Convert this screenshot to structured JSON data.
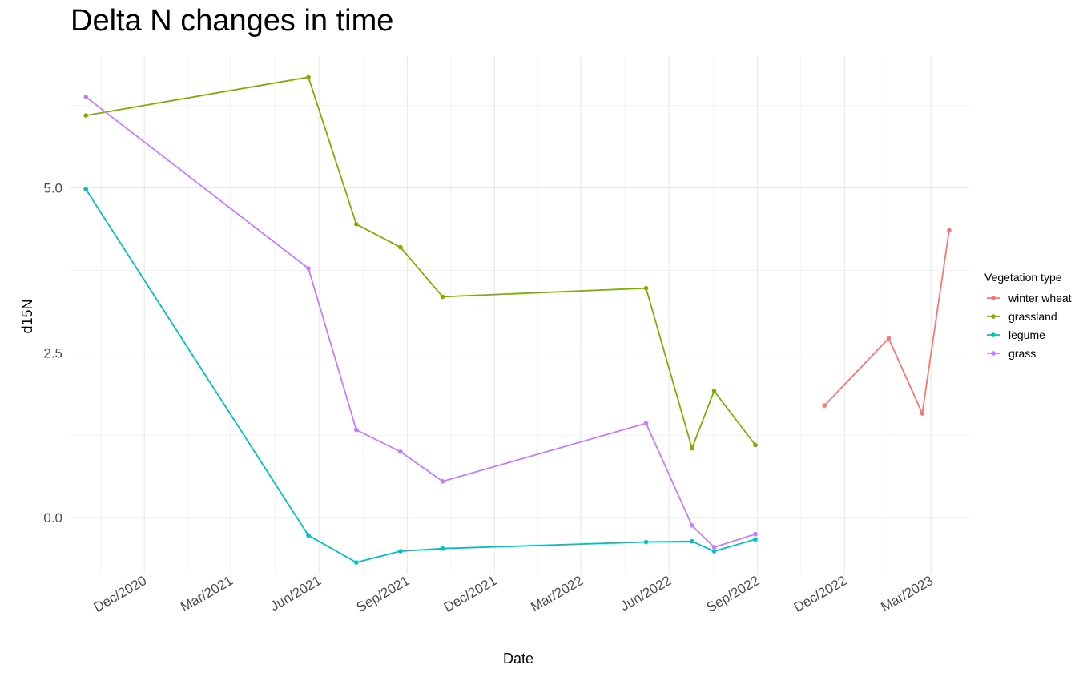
{
  "chart_data": {
    "type": "line",
    "title": "Delta N changes in time",
    "xlabel": "Date",
    "ylabel": "d15N",
    "x_type": "date",
    "xlim": [
      "2020-09-15",
      "2023-04-10"
    ],
    "ylim": [
      -0.85,
      7.0
    ],
    "x_ticks": [
      {
        "date": "2020-12-01",
        "label": "Dec/2020"
      },
      {
        "date": "2021-03-01",
        "label": "Mar/2021"
      },
      {
        "date": "2021-06-01",
        "label": "Jun/2021"
      },
      {
        "date": "2021-09-01",
        "label": "Sep/2021"
      },
      {
        "date": "2021-12-01",
        "label": "Dec/2021"
      },
      {
        "date": "2022-03-01",
        "label": "Mar/2022"
      },
      {
        "date": "2022-06-01",
        "label": "Jun/2022"
      },
      {
        "date": "2022-09-01",
        "label": "Sep/2022"
      },
      {
        "date": "2022-12-01",
        "label": "Dec/2022"
      },
      {
        "date": "2023-03-01",
        "label": "Mar/2023"
      }
    ],
    "y_ticks": [
      {
        "value": 0.0,
        "label": "0.0"
      },
      {
        "value": 2.5,
        "label": "2.5"
      },
      {
        "value": 5.0,
        "label": "5.0"
      }
    ],
    "grid": true,
    "legend": {
      "title": "Vegetation type",
      "position": "right"
    },
    "series": [
      {
        "name": "winter wheat",
        "color": "#F8766D",
        "x": [
          "2022-11-10",
          "2023-01-16",
          "2023-02-20",
          "2023-03-20"
        ],
        "y": [
          1.7,
          2.72,
          1.58,
          4.36
        ]
      },
      {
        "name": "grassland",
        "color": "#7CAE00",
        "x": [
          "2020-10-01",
          "2021-05-21",
          "2021-07-10",
          "2021-08-25",
          "2021-10-08",
          "2022-05-08",
          "2022-06-25",
          "2022-07-18",
          "2022-08-30"
        ],
        "y": [
          6.1,
          6.68,
          4.45,
          4.1,
          3.35,
          3.48,
          1.05,
          1.92,
          1.1
        ]
      },
      {
        "name": "legume",
        "color": "#00BFC4",
        "x": [
          "2020-10-01",
          "2021-05-21",
          "2021-07-10",
          "2021-08-25",
          "2021-10-08",
          "2022-05-08",
          "2022-06-25",
          "2022-07-18",
          "2022-08-30"
        ],
        "y": [
          4.98,
          -0.27,
          -0.68,
          -0.51,
          -0.47,
          -0.37,
          -0.36,
          -0.51,
          -0.33
        ]
      },
      {
        "name": "grass",
        "color": "#C77CFF",
        "x": [
          "2020-10-01",
          "2021-05-21",
          "2021-07-10",
          "2021-08-25",
          "2021-10-08",
          "2022-05-08",
          "2022-06-25",
          "2022-07-18",
          "2022-08-30"
        ],
        "y": [
          6.38,
          3.78,
          1.33,
          1.0,
          0.55,
          1.43,
          -0.12,
          -0.45,
          -0.25
        ]
      }
    ]
  }
}
